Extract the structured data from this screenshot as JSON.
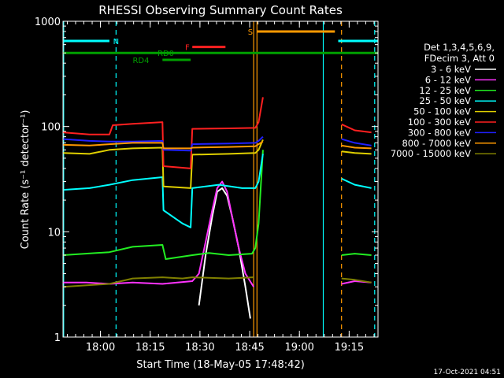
{
  "chart_data": {
    "type": "line",
    "title": "RHESSI Observing Summary Count Rates",
    "xlabel": "Start Time (18-May-05 17:48:42)",
    "ylabel": "Count Rate (s⁻¹ detector⁻¹)",
    "y_scale": "log",
    "ylim": [
      1,
      1000
    ],
    "xlim_minutes": [
      0,
      95
    ],
    "x_ticks": [
      {
        "label": "18:00",
        "minute": 11.3
      },
      {
        "label": "18:15",
        "minute": 26.3
      },
      {
        "label": "18:30",
        "minute": 41.3
      },
      {
        "label": "18:45",
        "minute": 56.3
      },
      {
        "label": "19:00",
        "minute": 71.3
      },
      {
        "label": "19:15",
        "minute": 86.3
      }
    ],
    "y_ticks": [
      {
        "label": "1",
        "value": 1
      },
      {
        "label": "10",
        "value": 10
      },
      {
        "label": "100",
        "value": 100
      },
      {
        "label": "1000",
        "value": 1000
      }
    ],
    "legend_header": [
      "Det 1,3,4,5,6,9,",
      "FDecim 3, Att 0"
    ],
    "legend_position": "right",
    "series": [
      {
        "name": "3 - 6 keV",
        "color": "#ffffff",
        "segments": [
          [
            [
              41,
              2
            ],
            [
              43,
              6
            ],
            [
              45,
              14
            ],
            [
              46.5,
              24
            ],
            [
              48,
              26
            ],
            [
              49.5,
              22
            ],
            [
              51,
              14
            ],
            [
              53,
              7
            ],
            [
              55,
              3
            ],
            [
              56.5,
              1.5
            ]
          ]
        ]
      },
      {
        "name": "6 - 12 keV",
        "color": "#ff33ff",
        "segments": [
          [
            [
              0,
              3.3
            ],
            [
              7,
              3.3
            ],
            [
              14,
              3.2
            ],
            [
              21,
              3.3
            ],
            [
              30,
              3.2
            ],
            [
              39,
              3.4
            ],
            [
              41,
              4
            ],
            [
              43,
              8
            ],
            [
              45,
              16
            ],
            [
              46.5,
              26
            ],
            [
              48,
              30
            ],
            [
              49.5,
              24
            ],
            [
              51,
              14
            ],
            [
              53,
              7
            ],
            [
              55,
              4
            ],
            [
              57.5,
              3
            ]
          ],
          [
            [
              84,
              3.2
            ],
            [
              88,
              3.4
            ],
            [
              93,
              3.3
            ]
          ]
        ]
      },
      {
        "name": "12 - 25 keV",
        "color": "#22ee22",
        "segments": [
          [
            [
              0,
              6
            ],
            [
              14,
              6.4
            ],
            [
              21,
              7.2
            ],
            [
              30,
              7.5
            ],
            [
              31,
              5.5
            ],
            [
              39,
              6
            ],
            [
              44,
              6.3
            ],
            [
              50,
              6
            ],
            [
              57,
              6.2
            ],
            [
              58,
              7
            ],
            [
              59,
              12
            ],
            [
              60.3,
              60
            ]
          ],
          [
            [
              84,
              6
            ],
            [
              88,
              6.2
            ],
            [
              93,
              6
            ]
          ]
        ]
      },
      {
        "name": "25 - 50 keV",
        "color": "#00ffff",
        "segments": [
          [
            [
              0,
              25
            ],
            [
              8,
              26
            ],
            [
              14,
              28
            ],
            [
              21,
              31
            ],
            [
              30,
              33
            ],
            [
              30.3,
              16
            ],
            [
              36,
              12
            ],
            [
              38.5,
              11
            ],
            [
              39,
              26
            ],
            [
              47,
              28
            ],
            [
              54,
              26
            ],
            [
              58,
              26
            ],
            [
              59,
              30
            ],
            [
              60.3,
              55
            ]
          ],
          [
            [
              84,
              32
            ],
            [
              88,
              28
            ],
            [
              93,
              26
            ]
          ]
        ]
      },
      {
        "name": "50 - 100 keV",
        "color": "#e0d000",
        "segments": [
          [
            [
              0,
              56
            ],
            [
              8,
              55
            ],
            [
              14,
              60
            ],
            [
              21,
              62
            ],
            [
              30,
              63
            ],
            [
              30.3,
              27
            ],
            [
              38.5,
              26
            ],
            [
              39,
              54
            ],
            [
              50,
              55
            ],
            [
              58,
              56
            ],
            [
              59,
              60
            ],
            [
              60.3,
              75
            ]
          ],
          [
            [
              84,
              58
            ],
            [
              88,
              56
            ],
            [
              93,
              55
            ]
          ]
        ]
      },
      {
        "name": "100 - 300 keV",
        "color": "#ff2020",
        "segments": [
          [
            [
              0,
              88
            ],
            [
              8,
              84
            ],
            [
              14,
              84
            ],
            [
              15,
              103
            ],
            [
              21,
              106
            ],
            [
              30,
              110
            ],
            [
              30.3,
              42
            ],
            [
              38.5,
              40
            ],
            [
              39,
              95
            ],
            [
              50,
              96
            ],
            [
              58,
              97
            ],
            [
              59,
              110
            ],
            [
              60.3,
              190
            ]
          ],
          [
            [
              84,
              105
            ],
            [
              88,
              92
            ],
            [
              93,
              88
            ]
          ]
        ]
      },
      {
        "name": "300 - 800 keV",
        "color": "#2020ff",
        "segments": [
          [
            [
              0,
              76
            ],
            [
              8,
              73
            ],
            [
              14,
              72
            ],
            [
              21,
              72
            ],
            [
              30,
              73
            ],
            [
              30.3,
              60
            ],
            [
              38.5,
              59
            ],
            [
              39,
              68
            ],
            [
              50,
              69
            ],
            [
              58,
              70
            ],
            [
              59,
              73
            ],
            [
              60.3,
              80
            ]
          ],
          [
            [
              84,
              76
            ],
            [
              88,
              70
            ],
            [
              93,
              66
            ]
          ]
        ]
      },
      {
        "name": "800 - 7000 keV",
        "color": "#ff9900",
        "segments": [
          [
            [
              0,
              67
            ],
            [
              8,
              66
            ],
            [
              14,
              68
            ],
            [
              21,
              70
            ],
            [
              30,
              70
            ],
            [
              30.3,
              62
            ],
            [
              38.5,
              62
            ],
            [
              39,
              63
            ],
            [
              50,
              64
            ],
            [
              58,
              65
            ],
            [
              59,
              68
            ],
            [
              60.3,
              72
            ]
          ],
          [
            [
              84,
              66
            ],
            [
              88,
              63
            ],
            [
              93,
              62
            ]
          ]
        ]
      },
      {
        "name": "7000 - 15000 keV",
        "color": "#808000",
        "segments": [
          [
            [
              0,
              3
            ],
            [
              14,
              3.2
            ],
            [
              21,
              3.6
            ],
            [
              30,
              3.7
            ],
            [
              36,
              3.6
            ],
            [
              39,
              3.7
            ],
            [
              50,
              3.6
            ],
            [
              57.5,
              3.7
            ]
          ],
          [
            [
              84,
              3.6
            ],
            [
              88,
              3.5
            ],
            [
              93,
              3.3
            ]
          ]
        ]
      }
    ],
    "status_bars": [
      {
        "label": "N",
        "color": "#00ffff",
        "value": 650,
        "x_segments": [
          [
            0,
            14
          ],
          [
            83,
            95
          ]
        ],
        "label_at_minute": 16
      },
      {
        "label": "S",
        "color": "#ff9900",
        "value": 800,
        "x_segments": [
          [
            58.5,
            82
          ]
        ],
        "label_at_minute": 56.5
      },
      {
        "label": "F",
        "color": "#ff2020",
        "value": 570,
        "x_segments": [
          [
            39,
            49
          ]
        ],
        "label_at_minute": 37.5
      },
      {
        "label": "RD0",
        "color": "#00a000",
        "value": 500,
        "x_segments": [
          [
            0,
            95
          ]
        ],
        "label_at_minute": 31
      },
      {
        "label": "RD4",
        "color": "#00a000",
        "value": 430,
        "x_segments": [
          [
            30,
            38.5
          ]
        ],
        "label_at_minute": 23.5
      }
    ],
    "vertical_markers": [
      {
        "minute": 0.2,
        "color": "#00ffff",
        "style": "solid"
      },
      {
        "minute": 16,
        "color": "#00ffff",
        "style": "dashed"
      },
      {
        "minute": 57.5,
        "color": "#ff9900",
        "style": "solid"
      },
      {
        "minute": 58.5,
        "color": "#ff9900",
        "style": "solid"
      },
      {
        "minute": 78.5,
        "color": "#00ffff",
        "style": "solid"
      },
      {
        "minute": 84,
        "color": "#ff9900",
        "style": "dashed"
      },
      {
        "minute": 94,
        "color": "#00ffff",
        "style": "dashed"
      }
    ]
  },
  "timestamp": "17-Oct-2021 04:51"
}
